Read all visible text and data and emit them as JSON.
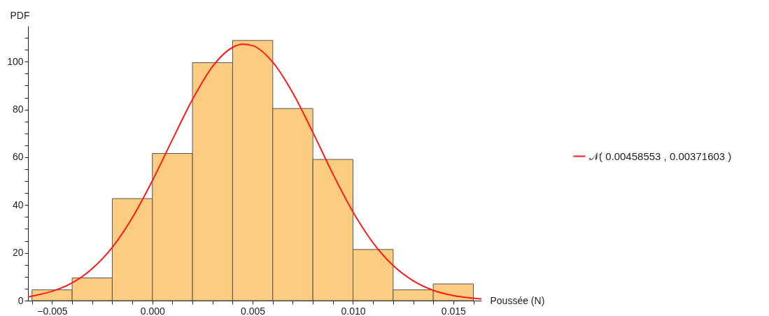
{
  "chart_data": {
    "type": "histogram",
    "xlabel": "Poussée (N)",
    "ylabel": "PDF",
    "bins": [
      -0.006,
      -0.004,
      -0.002,
      0.0,
      0.002,
      0.004,
      0.006,
      0.008,
      0.01,
      0.012,
      0.014,
      0.016
    ],
    "values": [
      4.5,
      9.5,
      42.7,
      61.6,
      99.6,
      108.9,
      80.4,
      59.1,
      21.4,
      4.5,
      7
    ],
    "color": "#fccd80",
    "series": [
      {
        "type": "line",
        "name": "𝒩( 0.00458553 , 0.00371603 )",
        "color": "#ff1a1a",
        "x": [
          -0.0062,
          -0.006,
          -0.005,
          -0.004,
          -0.003,
          -0.002,
          -0.001,
          0.0,
          0.001,
          0.002,
          0.003,
          0.004,
          0.0045,
          0.005,
          0.006,
          0.007,
          0.008,
          0.009,
          0.01,
          0.011,
          0.012,
          0.013,
          0.014,
          0.015,
          0.016,
          0.0164
        ],
        "values": [
          1.5,
          1.9,
          3.9,
          7.4,
          13.4,
          22.3,
          34.7,
          50.2,
          67.4,
          84.2,
          98.0,
          106.0,
          107.3,
          106.7,
          99.8,
          86.9,
          70.4,
          53.0,
          37.1,
          24.2,
          14.7,
          8.3,
          4.3,
          2.1,
          1.0,
          0.7
        ]
      }
    ],
    "xlim": [
      -0.0062,
      0.0164
    ],
    "xticks": [
      {
        "value": -0.006,
        "label": null
      },
      {
        "value": -0.005,
        "label": "−0.005"
      },
      {
        "value": -0.004,
        "label": null
      },
      {
        "value": -0.003,
        "label": null
      },
      {
        "value": -0.002,
        "label": null
      },
      {
        "value": -0.001,
        "label": null
      },
      {
        "value": 0,
        "label": "0.000"
      },
      {
        "value": 0.001,
        "label": null
      },
      {
        "value": 0.002,
        "label": null
      },
      {
        "value": 0.003,
        "label": null
      },
      {
        "value": 0.004,
        "label": null
      },
      {
        "value": 0.005,
        "label": "0.005"
      },
      {
        "value": 0.006,
        "label": null
      },
      {
        "value": 0.007,
        "label": null
      },
      {
        "value": 0.008,
        "label": null
      },
      {
        "value": 0.009,
        "label": null
      },
      {
        "value": 0.01,
        "label": "0.010"
      },
      {
        "value": 0.011,
        "label": null
      },
      {
        "value": 0.012,
        "label": null
      },
      {
        "value": 0.013,
        "label": null
      },
      {
        "value": 0.014,
        "label": null
      },
      {
        "value": 0.015,
        "label": "0.015"
      },
      {
        "value": 0.016,
        "label": null
      }
    ],
    "ylim": [
      0,
      115
    ],
    "yticks": [
      0,
      {
        "value": 5,
        "label": null
      },
      {
        "value": 10,
        "label": null
      },
      {
        "value": 15,
        "label": null
      },
      20,
      {
        "value": 25,
        "label": null
      },
      {
        "value": 30,
        "label": null
      },
      {
        "value": 35,
        "label": null
      },
      40,
      {
        "value": 45,
        "label": null
      },
      {
        "value": 50,
        "label": null
      },
      {
        "value": 55,
        "label": null
      },
      60,
      {
        "value": 65,
        "label": null
      },
      {
        "value": 70,
        "label": null
      },
      {
        "value": 75,
        "label": null
      },
      80,
      {
        "value": 85,
        "label": null
      },
      {
        "value": 90,
        "label": null
      },
      {
        "value": 95,
        "label": null
      },
      100,
      {
        "value": 105,
        "label": null
      },
      {
        "value": 110,
        "label": null
      }
    ],
    "grid": false,
    "legend": "right"
  }
}
